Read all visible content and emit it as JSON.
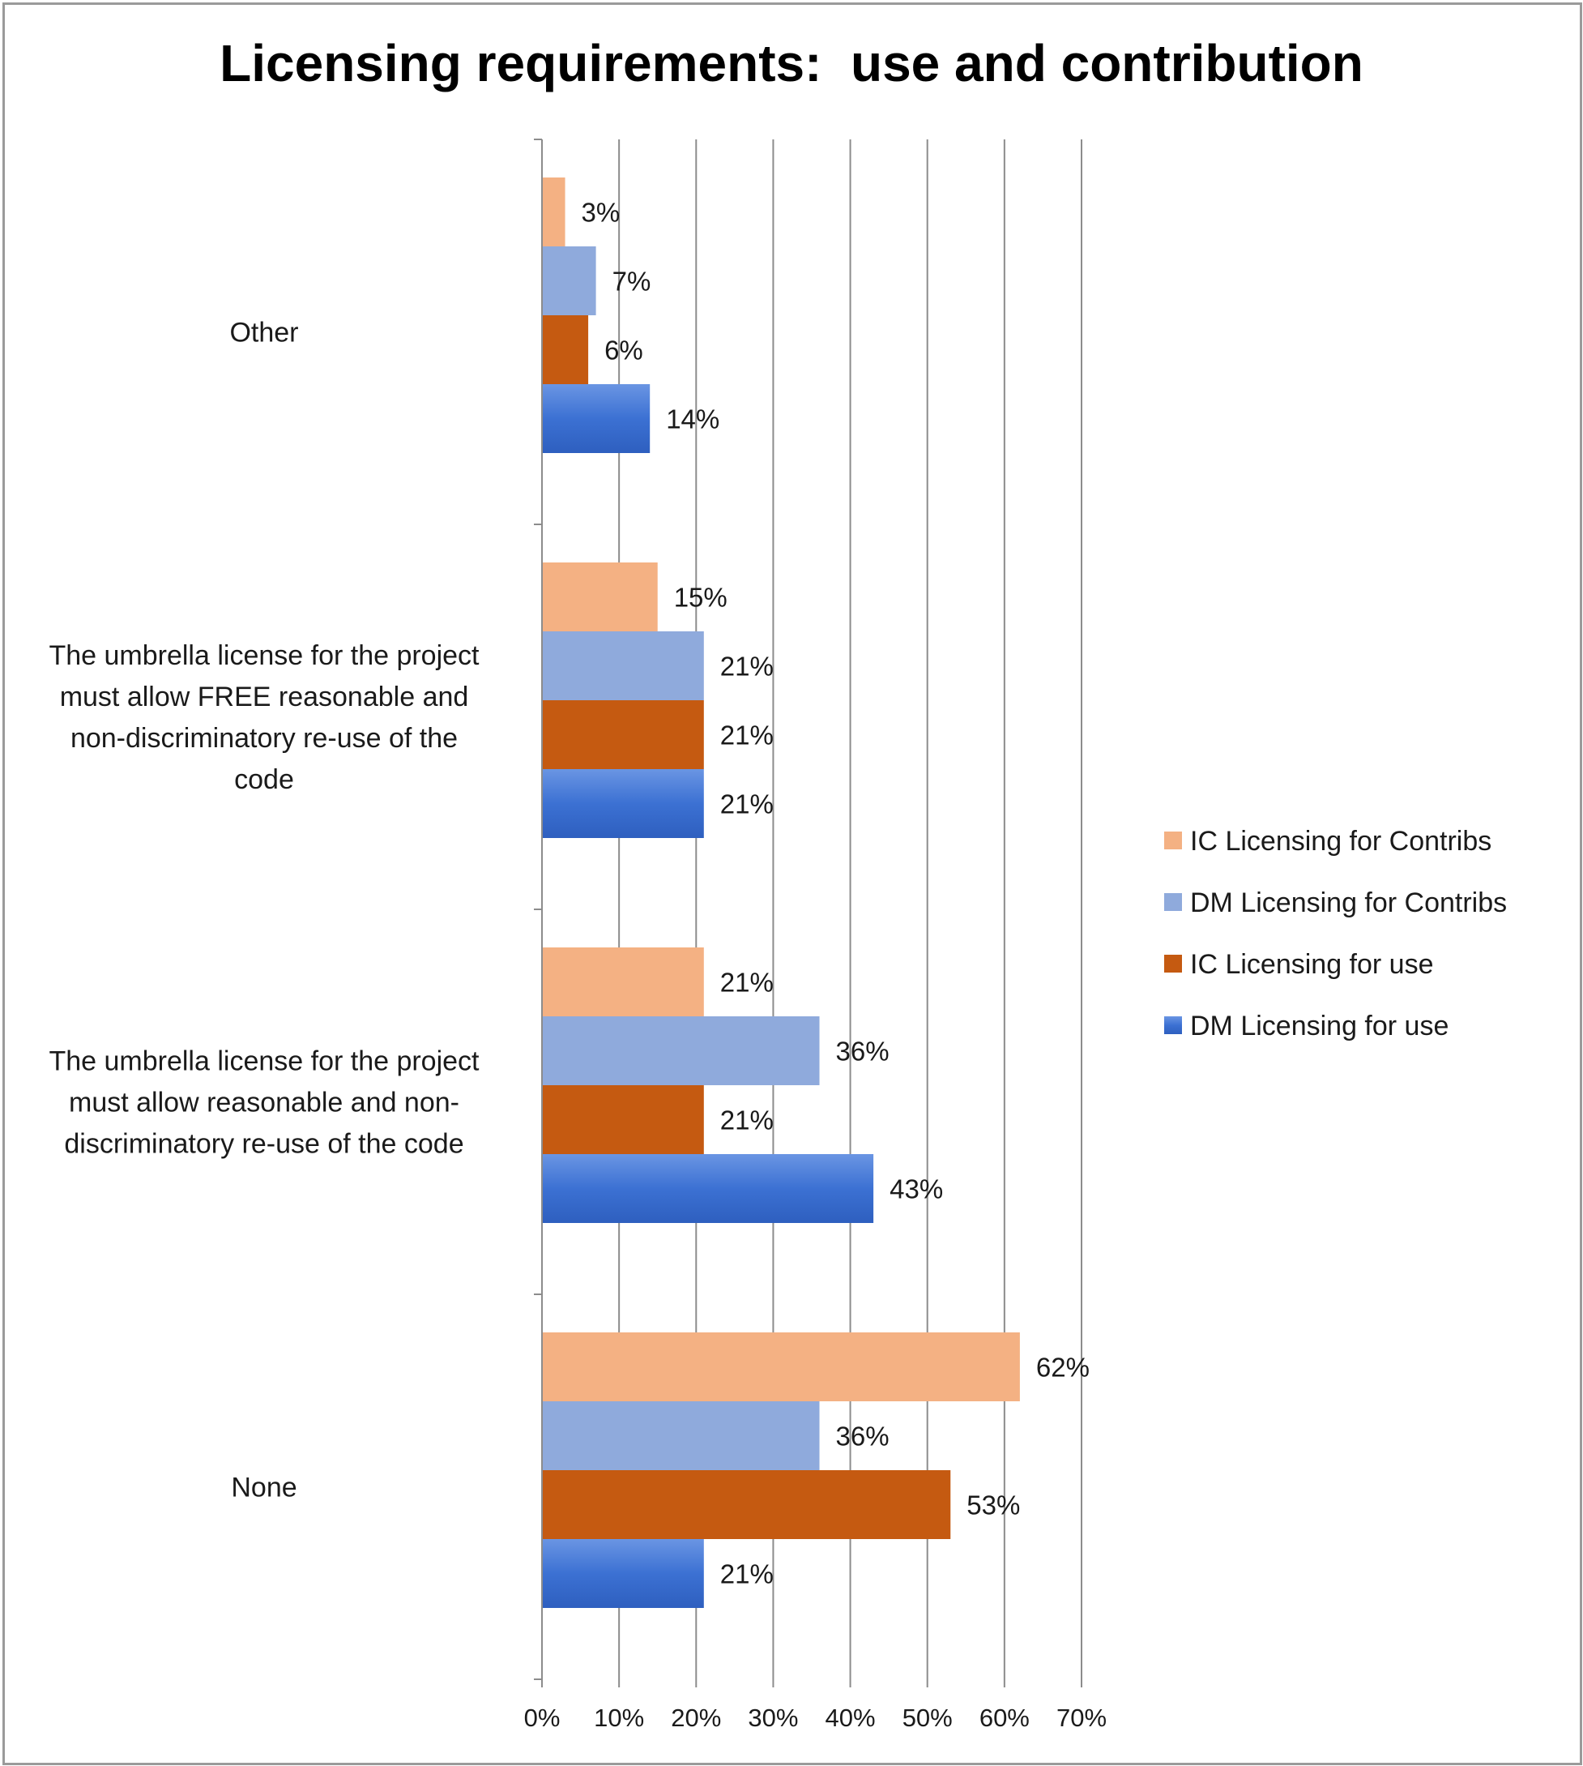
{
  "chart_data": {
    "type": "bar",
    "orientation": "horizontal",
    "title": "Licensing requirements:  use and contribution",
    "xlabel": "",
    "ylabel": "",
    "xlim": [
      0,
      70
    ],
    "grid": true,
    "legend_position": "right",
    "categories": [
      "Other",
      "The umbrella license for the project must allow FREE reasonable and non-discriminatory re-use of the code",
      "The umbrella license for the project must allow reasonable and non-discriminatory re-use of the code",
      "None"
    ],
    "category_lines": [
      [
        "Other"
      ],
      [
        "The umbrella license for the project",
        "must allow FREE reasonable and",
        "non-discriminatory re-use of the",
        "code"
      ],
      [
        "The umbrella license for the project",
        "must allow reasonable and non-",
        "discriminatory re-use of the code"
      ],
      [
        "None"
      ]
    ],
    "x_ticks": [
      "0%",
      "10%",
      "20%",
      "30%",
      "40%",
      "50%",
      "60%",
      "70%"
    ],
    "series": [
      {
        "name": "IC Licensing for Contribs",
        "color": "#F4B183",
        "values": [
          3,
          15,
          21,
          62
        ],
        "labels": [
          "3%",
          "15%",
          "21%",
          "62%"
        ]
      },
      {
        "name": "DM Licensing for Contribs",
        "color": "#8FAADC",
        "values": [
          7,
          21,
          36,
          36
        ],
        "labels": [
          "7%",
          "21%",
          "36%",
          "36%"
        ]
      },
      {
        "name": "IC Licensing for use",
        "color": "#C55A11",
        "values": [
          6,
          21,
          21,
          53
        ],
        "labels": [
          "6%",
          "21%",
          "21%",
          "53%"
        ]
      },
      {
        "name": "DM Licensing for use",
        "color": "#3A6FD0",
        "values": [
          14,
          21,
          43,
          21
        ],
        "labels": [
          "14%",
          "21%",
          "43%",
          "21%"
        ]
      }
    ]
  }
}
